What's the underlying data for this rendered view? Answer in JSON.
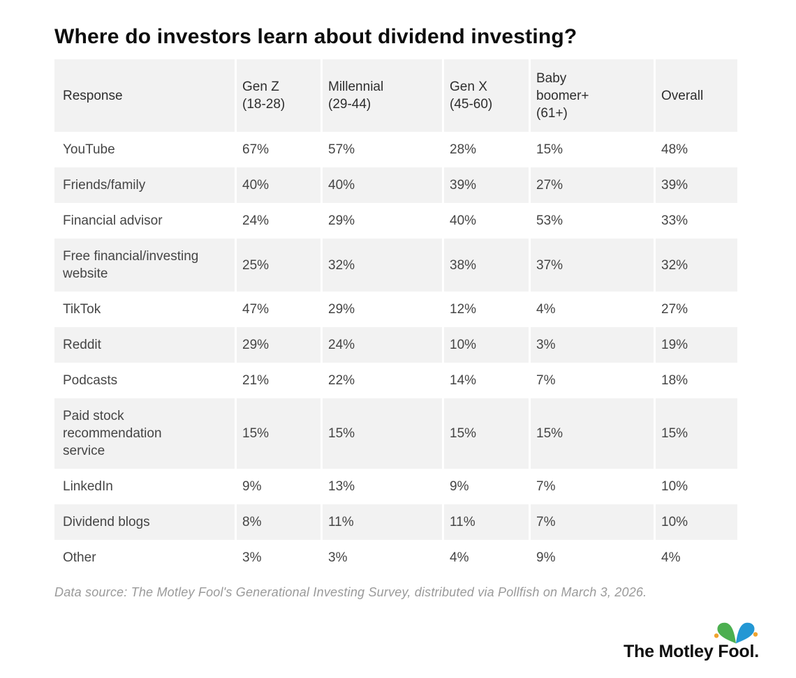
{
  "title": "Where do investors learn about dividend investing?",
  "table": {
    "columns": [
      {
        "lines": [
          "Response"
        ]
      },
      {
        "lines": [
          "Gen Z",
          "(18-28)"
        ]
      },
      {
        "lines": [
          "Millennial",
          "(29-44)"
        ]
      },
      {
        "lines": [
          "Gen X",
          "(45-60)"
        ]
      },
      {
        "lines": [
          "Baby",
          "boomer+",
          "(61+)"
        ]
      },
      {
        "lines": [
          "Overall"
        ]
      }
    ],
    "rows": [
      {
        "label_lines": [
          "YouTube"
        ],
        "values": [
          "67%",
          "57%",
          "28%",
          "15%",
          "48%"
        ]
      },
      {
        "label_lines": [
          "Friends/family"
        ],
        "values": [
          "40%",
          "40%",
          "39%",
          "27%",
          "39%"
        ]
      },
      {
        "label_lines": [
          "Financial advisor"
        ],
        "values": [
          "24%",
          "29%",
          "40%",
          "53%",
          "33%"
        ]
      },
      {
        "label_lines": [
          "Free financial/investing",
          "website"
        ],
        "values": [
          "25%",
          "32%",
          "38%",
          "37%",
          "32%"
        ]
      },
      {
        "label_lines": [
          "TikTok"
        ],
        "values": [
          "47%",
          "29%",
          "12%",
          "4%",
          "27%"
        ]
      },
      {
        "label_lines": [
          "Reddit"
        ],
        "values": [
          "29%",
          "24%",
          "10%",
          "3%",
          "19%"
        ]
      },
      {
        "label_lines": [
          "Podcasts"
        ],
        "values": [
          "21%",
          "22%",
          "14%",
          "7%",
          "18%"
        ]
      },
      {
        "label_lines": [
          "Paid stock",
          "recommendation",
          "service"
        ],
        "values": [
          "15%",
          "15%",
          "15%",
          "15%",
          "15%"
        ]
      },
      {
        "label_lines": [
          "LinkedIn"
        ],
        "values": [
          "9%",
          "13%",
          "9%",
          "7%",
          "10%"
        ]
      },
      {
        "label_lines": [
          "Dividend blogs"
        ],
        "values": [
          "8%",
          "11%",
          "11%",
          "7%",
          "10%"
        ]
      },
      {
        "label_lines": [
          "Other"
        ],
        "values": [
          "3%",
          "3%",
          "4%",
          "9%",
          "4%"
        ]
      }
    ]
  },
  "footnote": {
    "text": "Data source: The Motley Fool's Generational Investing Survey, distributed via Pollfish on March 3, 2026."
  },
  "logo": {
    "text": "The Motley Fool.",
    "icon": "jester-hat-icon"
  },
  "colors": {
    "row_alt_background": "#f2f2f2",
    "body_text": "#454545",
    "header_text": "#2e2e2e",
    "title_text": "#0d0d0d",
    "footnote_text": "#9a9a9a",
    "logo_green": "#4caf50",
    "logo_blue": "#2397d4",
    "logo_ball_yellow": "#f0a32f"
  },
  "chart_data": {
    "type": "table",
    "title": "Where do investors learn about dividend investing?",
    "columns": [
      "Response",
      "Gen Z (18-28)",
      "Millennial (29-44)",
      "Gen X (45-60)",
      "Baby boomer+ (61+)",
      "Overall"
    ],
    "rows": [
      [
        "YouTube",
        "67%",
        "57%",
        "28%",
        "15%",
        "48%"
      ],
      [
        "Friends/family",
        "40%",
        "40%",
        "39%",
        "27%",
        "39%"
      ],
      [
        "Financial advisor",
        "24%",
        "29%",
        "40%",
        "53%",
        "33%"
      ],
      [
        "Free financial/investing website",
        "25%",
        "32%",
        "38%",
        "37%",
        "32%"
      ],
      [
        "TikTok",
        "47%",
        "29%",
        "12%",
        "4%",
        "27%"
      ],
      [
        "Reddit",
        "29%",
        "24%",
        "10%",
        "3%",
        "19%"
      ],
      [
        "Podcasts",
        "21%",
        "22%",
        "14%",
        "7%",
        "18%"
      ],
      [
        "Paid stock recommendation service",
        "15%",
        "15%",
        "15%",
        "15%",
        "15%"
      ],
      [
        "LinkedIn",
        "9%",
        "13%",
        "9%",
        "7%",
        "10%"
      ],
      [
        "Dividend blogs",
        "8%",
        "11%",
        "11%",
        "7%",
        "10%"
      ],
      [
        "Other",
        "3%",
        "3%",
        "4%",
        "9%",
        "4%"
      ]
    ],
    "source_note": "Data source: The Motley Fool's Generational Investing Survey, distributed via Pollfish on March 3, 2026.",
    "layout": {
      "alternating_rows": true,
      "header_background": "#f2f2f2",
      "grid": "white column gaps"
    }
  }
}
